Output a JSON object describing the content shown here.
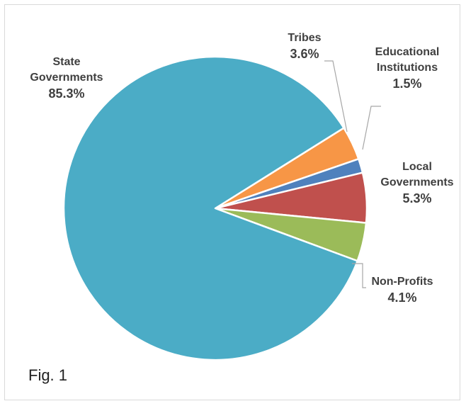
{
  "chart_data": {
    "type": "pie",
    "start_angle_deg": 328,
    "slices": [
      {
        "key": "tribes",
        "label_lines": [
          "Tribes"
        ],
        "pct_label": "3.6%",
        "value": 3.6,
        "color": "#f79646"
      },
      {
        "key": "edu",
        "label_lines": [
          "Educational",
          "Institutions"
        ],
        "pct_label": "1.5%",
        "value": 1.5,
        "color": "#4f81bd"
      },
      {
        "key": "local",
        "label_lines": [
          "Local",
          "Governments"
        ],
        "pct_label": "5.3%",
        "value": 5.3,
        "color": "#c0504d"
      },
      {
        "key": "nonprofit",
        "label_lines": [
          "Non-Profits"
        ],
        "pct_label": "4.1%",
        "value": 4.1,
        "color": "#9bbb59"
      },
      {
        "key": "state",
        "label_lines": [
          "State",
          "Governments"
        ],
        "pct_label": "85.3%",
        "value": 85.3,
        "color": "#4bacc6"
      }
    ]
  },
  "figure_caption": "Fig. 1"
}
